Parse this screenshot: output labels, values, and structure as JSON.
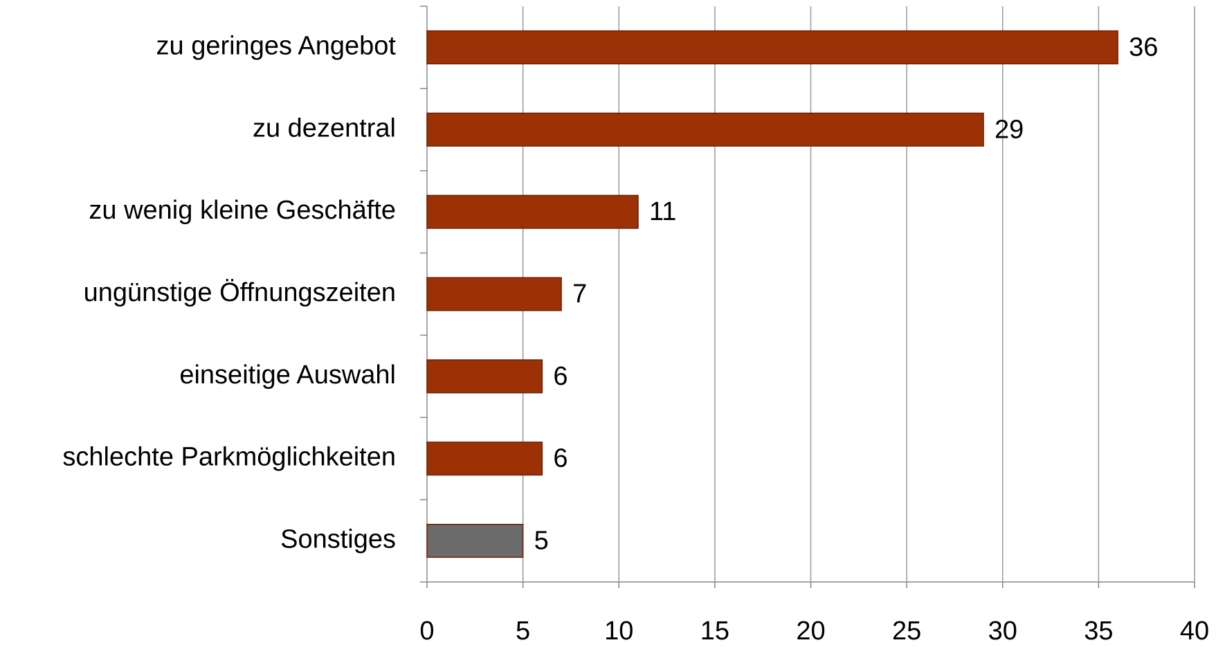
{
  "chart_data": {
    "type": "barh",
    "categories": [
      "zu geringes Angebot",
      "zu dezentral",
      "zu wenig kleine Geschäfte",
      "ungünstige Öffnungszeiten",
      "einseitige Auswahl",
      "schlechte Parkmöglichkeiten",
      "Sonstiges"
    ],
    "values": [
      36,
      29,
      11,
      7,
      6,
      6,
      5
    ],
    "colors": [
      "#9c3106",
      "#9c3106",
      "#9c3106",
      "#9c3106",
      "#9c3106",
      "#9c3106",
      "#6b6b6b"
    ],
    "xlim": [
      0,
      40
    ],
    "xticks": [
      0,
      5,
      10,
      15,
      20,
      25,
      30,
      35,
      40
    ],
    "grid": true
  }
}
